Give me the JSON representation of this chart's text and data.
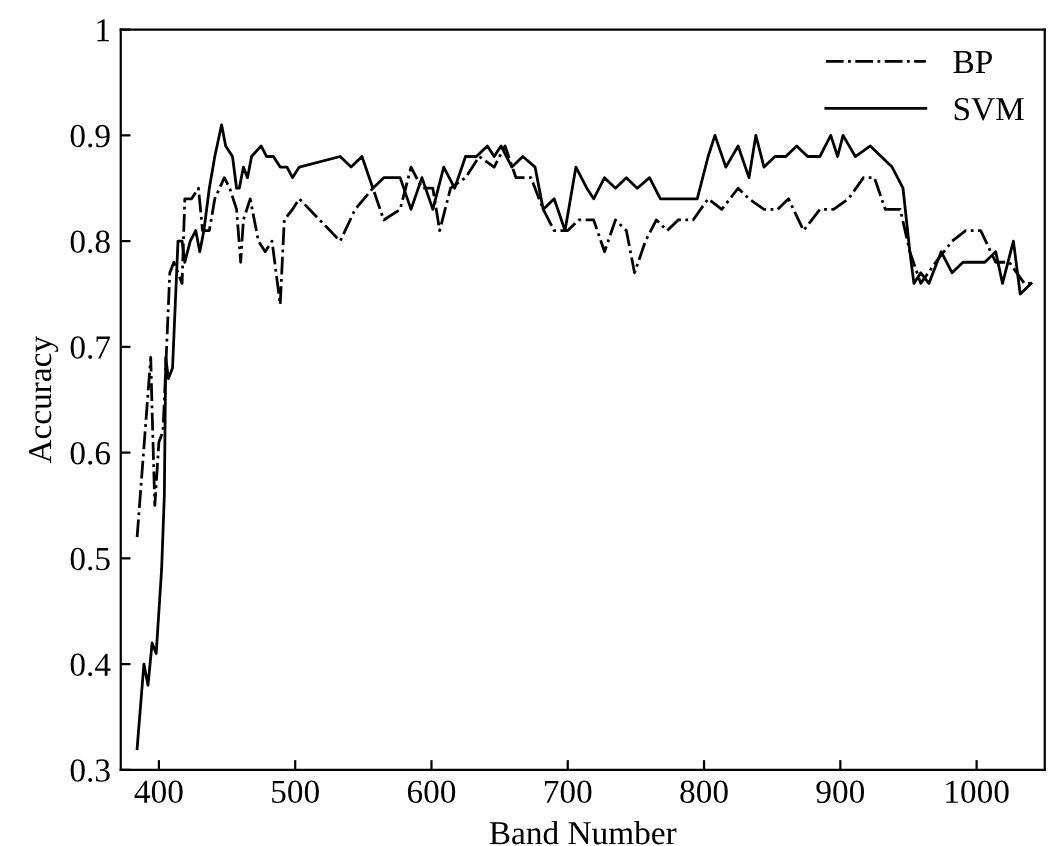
{
  "chart_data": {
    "type": "line",
    "xlabel": "Band Number",
    "ylabel": "Accuracy",
    "xlim": [
      372,
      1050
    ],
    "xticks": [
      400,
      500,
      600,
      700,
      800,
      900,
      1000
    ],
    "ylim": [
      0.3,
      1
    ],
    "yticks": [
      {
        "value": 0.3,
        "label": "0.3"
      },
      {
        "value": 0.4,
        "label": "0.4"
      },
      {
        "value": 0.5,
        "label": "0.5"
      },
      {
        "value": 0.6,
        "label": "0.6"
      },
      {
        "value": 0.7,
        "label": "0.7"
      },
      {
        "value": 0.8,
        "label": "0.8"
      },
      {
        "value": 0.9,
        "label": "0.9"
      },
      {
        "value": 1,
        "label": "1"
      }
    ],
    "grid": false,
    "legend": "top right",
    "marker": "none",
    "series": [
      {
        "name": "BP",
        "color": "#000000",
        "line_style": "dashdot",
        "x": [
          384,
          394,
          395,
          397,
          400,
          403,
          408,
          411,
          414,
          417,
          419,
          424,
          429,
          432,
          437,
          441,
          448,
          452,
          457,
          460,
          462,
          467,
          473,
          478,
          483,
          489,
          492,
          498,
          503,
          533,
          544,
          557,
          565,
          577,
          585,
          593,
          601,
          606,
          614,
          625,
          635,
          646,
          654,
          662,
          673,
          682,
          690,
          700,
          708,
          714,
          719,
          727,
          735,
          743,
          749,
          757,
          765,
          773,
          781,
          792,
          803,
          813,
          825,
          833,
          844,
          854,
          862,
          873,
          885,
          895,
          906,
          917,
          925,
          933,
          944,
          951,
          959,
          970,
          982,
          992,
          1003,
          1014,
          1024,
          1035,
          1043
        ],
        "values": [
          0.52,
          0.69,
          0.64,
          0.55,
          0.61,
          0.62,
          0.77,
          0.78,
          0.77,
          0.76,
          0.84,
          0.84,
          0.85,
          0.81,
          0.81,
          0.84,
          0.86,
          0.85,
          0.83,
          0.78,
          0.82,
          0.84,
          0.8,
          0.79,
          0.8,
          0.74,
          0.82,
          0.83,
          0.84,
          0.8,
          0.83,
          0.85,
          0.82,
          0.83,
          0.87,
          0.85,
          0.85,
          0.81,
          0.85,
          0.86,
          0.88,
          0.87,
          0.89,
          0.86,
          0.86,
          0.83,
          0.81,
          0.81,
          0.82,
          0.82,
          0.82,
          0.79,
          0.82,
          0.81,
          0.77,
          0.8,
          0.82,
          0.81,
          0.82,
          0.82,
          0.84,
          0.83,
          0.85,
          0.84,
          0.83,
          0.83,
          0.84,
          0.81,
          0.83,
          0.83,
          0.84,
          0.86,
          0.86,
          0.83,
          0.83,
          0.79,
          0.76,
          0.78,
          0.8,
          0.81,
          0.81,
          0.78,
          0.78,
          0.76,
          0.76
        ]
      },
      {
        "name": "SVM",
        "color": "#000000",
        "line_style": "solid",
        "x": [
          384,
          389,
          392,
          395,
          398,
          402,
          404,
          405,
          407,
          410,
          412,
          414,
          417,
          419,
          423,
          427,
          430,
          433,
          437,
          441,
          446,
          449,
          454,
          457,
          459,
          462,
          465,
          468,
          475,
          479,
          484,
          489,
          494,
          498,
          503,
          533,
          541,
          549,
          557,
          565,
          577,
          585,
          593,
          601,
          609,
          617,
          625,
          633,
          641,
          646,
          651,
          659,
          667,
          676,
          682,
          690,
          698,
          706,
          714,
          719,
          727,
          735,
          743,
          751,
          760,
          768,
          776,
          787,
          795,
          803,
          808,
          816,
          825,
          833,
          838,
          844,
          852,
          860,
          868,
          876,
          885,
          893,
          898,
          902,
          911,
          922,
          930,
          938,
          946,
          951,
          954,
          959,
          965,
          974,
          982,
          990,
          998,
          1006,
          1014,
          1019,
          1027,
          1032,
          1040
        ],
        "values": [
          0.32,
          0.4,
          0.38,
          0.42,
          0.41,
          0.49,
          0.56,
          0.69,
          0.67,
          0.68,
          0.74,
          0.8,
          0.8,
          0.78,
          0.8,
          0.81,
          0.79,
          0.81,
          0.85,
          0.88,
          0.91,
          0.89,
          0.88,
          0.85,
          0.85,
          0.87,
          0.86,
          0.88,
          0.89,
          0.88,
          0.88,
          0.87,
          0.87,
          0.86,
          0.87,
          0.88,
          0.87,
          0.88,
          0.85,
          0.86,
          0.86,
          0.83,
          0.86,
          0.83,
          0.87,
          0.85,
          0.88,
          0.88,
          0.89,
          0.88,
          0.89,
          0.87,
          0.88,
          0.87,
          0.83,
          0.84,
          0.81,
          0.87,
          0.85,
          0.84,
          0.86,
          0.85,
          0.86,
          0.85,
          0.86,
          0.84,
          0.84,
          0.84,
          0.84,
          0.88,
          0.9,
          0.87,
          0.89,
          0.86,
          0.9,
          0.87,
          0.88,
          0.88,
          0.89,
          0.88,
          0.88,
          0.9,
          0.88,
          0.9,
          0.88,
          0.89,
          0.88,
          0.87,
          0.85,
          0.79,
          0.76,
          0.77,
          0.76,
          0.79,
          0.77,
          0.78,
          0.78,
          0.78,
          0.79,
          0.76,
          0.8,
          0.75,
          0.76
        ]
      }
    ]
  }
}
